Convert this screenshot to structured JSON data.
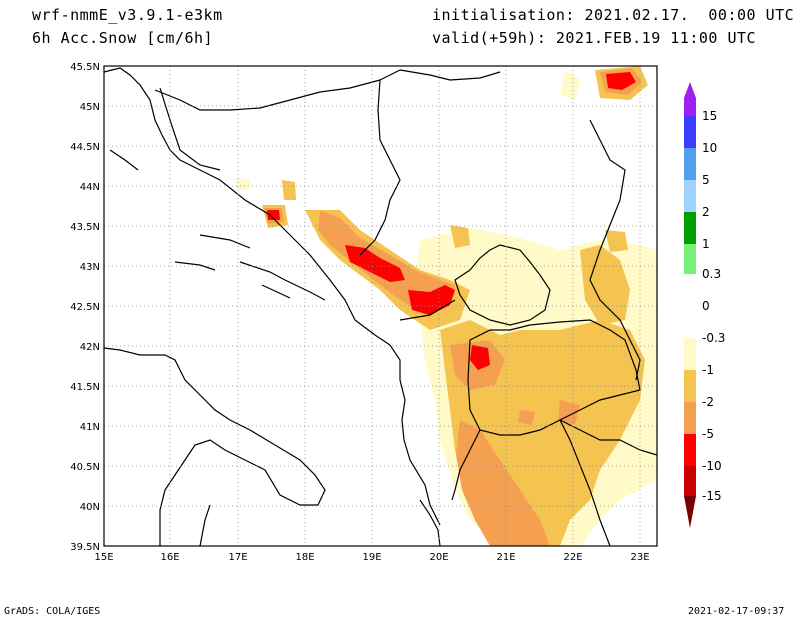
{
  "header": {
    "model": "wrf-nmmE_v3.9.1-e3km",
    "field": "6h Acc.Snow [cm/6h]",
    "init": "initialisation: 2021.02.17.  00:00 UTC",
    "valid": "valid(+59h): 2021.FEB.19 11:00 UTC"
  },
  "axes": {
    "lat_labels": [
      "45.5N",
      "45N",
      "44.5N",
      "44N",
      "43.5N",
      "43N",
      "42.5N",
      "42N",
      "41.5N",
      "41N",
      "40.5N",
      "40N",
      "39.5N"
    ],
    "lon_labels": [
      "15E",
      "16E",
      "17E",
      "18E",
      "19E",
      "20E",
      "21E",
      "22E",
      "23E"
    ]
  },
  "colorbar": {
    "labels": [
      "15",
      "10",
      "5",
      "2",
      "1",
      "0.3",
      "0",
      "-0.3",
      "-1",
      "-2",
      "-5",
      "-10",
      "-15"
    ],
    "colors": [
      "#a020f0",
      "#3c3cff",
      "#50a0f0",
      "#a0d2ff",
      "#00a000",
      "#78f078",
      "#ffffff",
      "#fffac8",
      "#f5c350",
      "#f5a050",
      "#ff0000",
      "#c80000",
      "#780000"
    ]
  },
  "footer": {
    "left": "GrADS: COLA/IGES",
    "right": "2021-02-17-09:37"
  }
}
